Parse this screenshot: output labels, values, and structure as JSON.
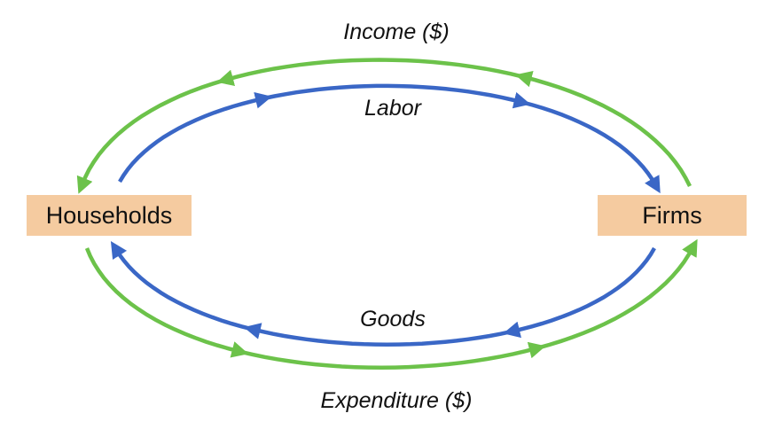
{
  "colors": {
    "money_flow": "#6cc24a",
    "real_flow": "#3a67c6",
    "node_fill": "#f5cba0",
    "text": "#111111",
    "background": "#ffffff"
  },
  "nodes": {
    "households": "Households",
    "firms": "Firms"
  },
  "flows": {
    "income": "Income ($)",
    "labor": "Labor",
    "goods": "Goods",
    "expenditure": "Expenditure ($)"
  }
}
